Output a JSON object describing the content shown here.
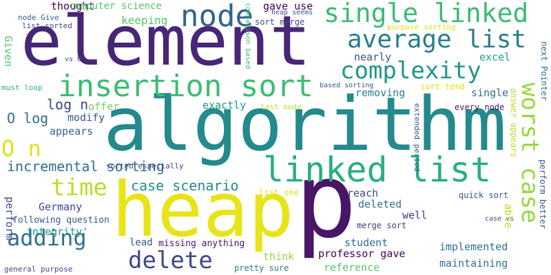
{
  "words": [
    {
      "text": "p",
      "color": "#481567"
    },
    {
      "text": "algorithm",
      "color": "#238a8d"
    },
    {
      "text": "element",
      "color": "#482677"
    },
    {
      "text": "heap",
      "color": "#e7e419"
    },
    {
      "text": "linked list",
      "color": "#29af7f"
    },
    {
      "text": "insertion sort",
      "color": "#3dbc74"
    },
    {
      "text": "node",
      "color": "#33638d"
    },
    {
      "text": "single linked",
      "color": "#3cbb75"
    },
    {
      "text": "average list",
      "color": "#287d8e"
    },
    {
      "text": "complexity",
      "color": "#1f968b"
    },
    {
      "text": "worst case",
      "color": "#95d840"
    },
    {
      "text": "delete",
      "color": "#404688"
    },
    {
      "text": "adding",
      "color": "#2d708e"
    },
    {
      "text": "time",
      "color": "#b8de29"
    },
    {
      "text": "O n",
      "color": "#dce319"
    },
    {
      "text": "incremental sorting",
      "color": "#2d708e"
    },
    {
      "text": "case scenario",
      "color": "#238a8d"
    },
    {
      "text": "log n",
      "color": "#3f4788"
    },
    {
      "text": "O log",
      "color": "#2d708e"
    },
    {
      "text": "thought",
      "color": "#440154"
    },
    {
      "text": "gave use",
      "color": "#440154"
    },
    {
      "text": "computer science",
      "color": "#55c667"
    },
    {
      "text": "keeping",
      "color": "#56c667"
    },
    {
      "text": "excel",
      "color": "#20a386"
    },
    {
      "text": "nearly",
      "color": "#3a548c"
    },
    {
      "text": "removing",
      "color": "#287d8e"
    },
    {
      "text": "single",
      "color": "#2d708e"
    },
    {
      "text": "exactly",
      "color": "#1f968b"
    },
    {
      "text": "modify",
      "color": "#39568c"
    },
    {
      "text": "offer",
      "color": "#73d055"
    },
    {
      "text": "appears",
      "color": "#33638d"
    },
    {
      "text": "Germany",
      "color": "#3f4788"
    },
    {
      "text": "integrity'",
      "color": "#1f968b"
    },
    {
      "text": "perform",
      "color": "#3f4788"
    },
    {
      "text": "reach",
      "color": "#3f4788"
    },
    {
      "text": "deleted",
      "color": "#2d708e"
    },
    {
      "text": "well",
      "color": "#453781"
    },
    {
      "text": "student",
      "color": "#2d708e"
    },
    {
      "text": "think",
      "color": "#95d840"
    },
    {
      "text": "professor gave",
      "color": "#440154"
    },
    {
      "text": "implemented",
      "color": "#2d708e"
    },
    {
      "text": "maintaining",
      "color": "#2d708e"
    },
    {
      "text": "reference",
      "color": "#55c667"
    },
    {
      "text": "lead",
      "color": "#39568c"
    },
    {
      "text": "missing anything",
      "color": "#481567"
    },
    {
      "text": "following question",
      "color": "#39568c"
    },
    {
      "text": "general purpose",
      "color": "#3f4788"
    },
    {
      "text": "pretty sure",
      "color": "#287d8e"
    },
    {
      "text": "merge sort",
      "color": "#453781"
    },
    {
      "text": "quick sort",
      "color": "#3a548c"
    },
    {
      "text": "list one",
      "color": "#dce319"
    },
    {
      "text": "every node",
      "color": "#481567"
    },
    {
      "text": "sort tend",
      "color": "#dce319"
    },
    {
      "text": "based sorting",
      "color": "#38598c"
    },
    {
      "text": "last node",
      "color": "#b8de29"
    },
    {
      "text": "vs O",
      "color": "#3f4788"
    },
    {
      "text": "node Give",
      "color": "#33638d"
    },
    {
      "text": "list sorted",
      "color": "#3f4788"
    },
    {
      "text": "must loop",
      "color": "#29af7f"
    },
    {
      "text": "sort merge",
      "color": "#3f4788"
    },
    {
      "text": "heap seems",
      "color": "#3a548c"
    },
    {
      "text": "purpose sorting",
      "color": "#dce319"
    },
    {
      "text": "sorted especially",
      "color": "#3f4788"
    },
    {
      "text": "case vs",
      "color": "#3f4788"
    },
    {
      "text": "Given",
      "color": "#55c667"
    },
    {
      "text": "comparison based",
      "color": "#3cbb75"
    },
    {
      "text": "extended period",
      "color": "#39568c"
    },
    {
      "text": "answer appears",
      "color": "#b8de29"
    },
    {
      "text": "able",
      "color": "#b8de29"
    },
    {
      "text": "next Pointer",
      "color": "#2d708e"
    },
    {
      "text": "perform better",
      "color": "#39568c"
    }
  ]
}
